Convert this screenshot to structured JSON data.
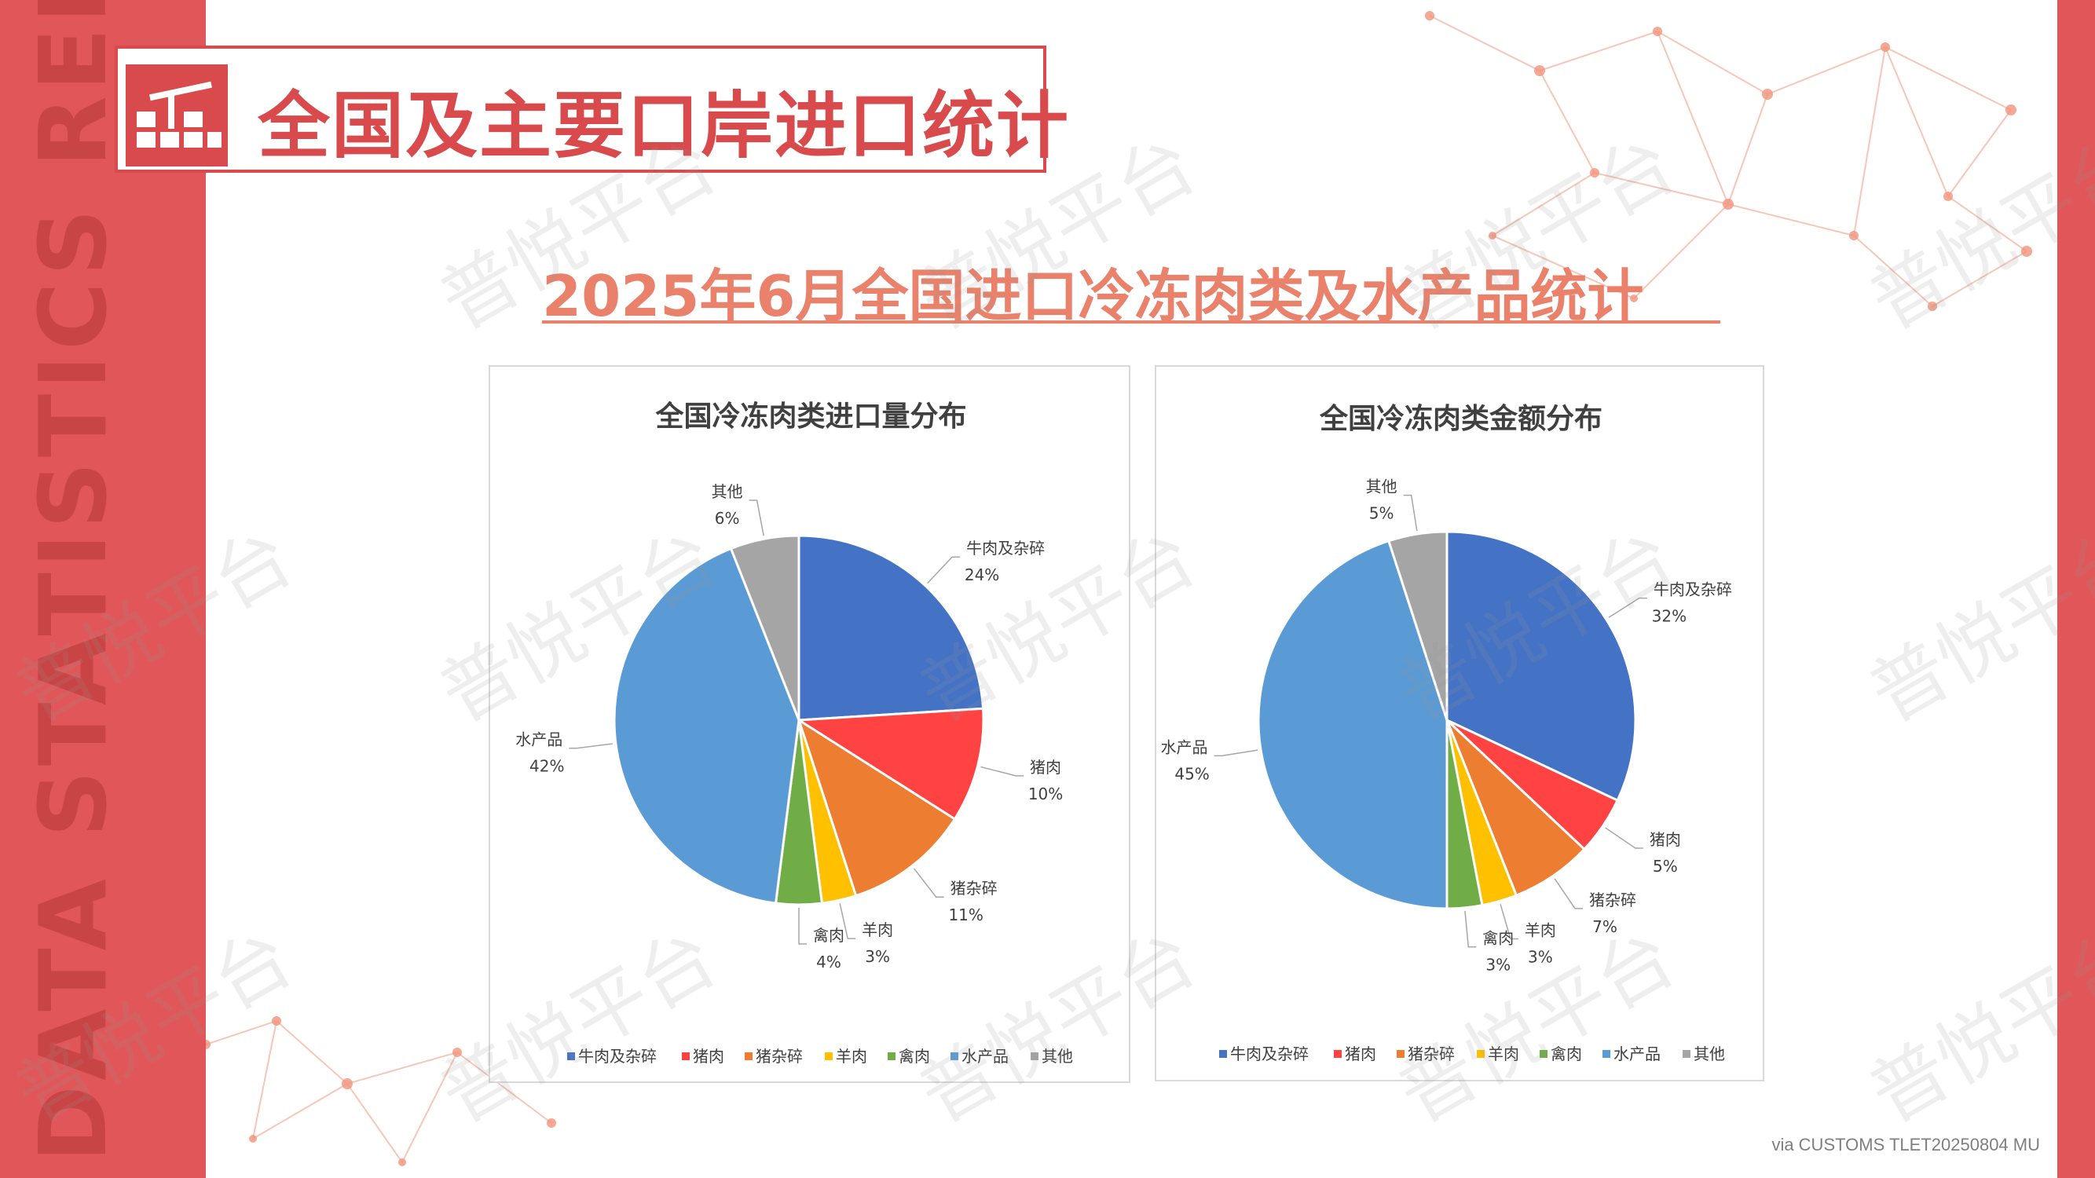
{
  "side_text": "DATA STATISTICS REPORT",
  "header": {
    "title": "全国及主要口岸进口统计"
  },
  "subtitle": "2025年6月全国进口冷冻肉类及水产品统计",
  "watermark": "普悦平台",
  "footer": "via CUSTOMS TLET20250804 MU",
  "colors": {
    "accent": "#e15759",
    "subtitle": "#e9816b"
  },
  "chart_data": [
    {
      "type": "pie",
      "title": "全国冷冻肉类进口量分布",
      "categories": [
        "牛肉及杂碎",
        "猪肉",
        "猪杂碎",
        "羊肉",
        "禽肉",
        "水产品",
        "其他"
      ],
      "values": [
        24,
        10,
        11,
        3,
        4,
        42,
        6
      ],
      "labels": [
        "24%",
        "10%",
        "11%",
        "3%",
        "4%",
        "42%",
        "6%"
      ],
      "colors": [
        "#4472c4",
        "#ff4343",
        "#ed7d31",
        "#ffc000",
        "#70ad47",
        "#5b9bd5",
        "#a5a5a5"
      ],
      "legend_position": "bottom"
    },
    {
      "type": "pie",
      "title": "全国冷冻肉类金额分布",
      "categories": [
        "牛肉及杂碎",
        "猪肉",
        "猪杂碎",
        "羊肉",
        "禽肉",
        "水产品",
        "其他"
      ],
      "values": [
        32,
        5,
        7,
        3,
        3,
        45,
        5
      ],
      "labels": [
        "32%",
        "5%",
        "7%",
        "3%",
        "3%",
        "45%",
        "5%"
      ],
      "colors": [
        "#4472c4",
        "#ff4343",
        "#ed7d31",
        "#ffc000",
        "#70ad47",
        "#5b9bd5",
        "#a5a5a5"
      ],
      "legend_position": "bottom"
    }
  ]
}
